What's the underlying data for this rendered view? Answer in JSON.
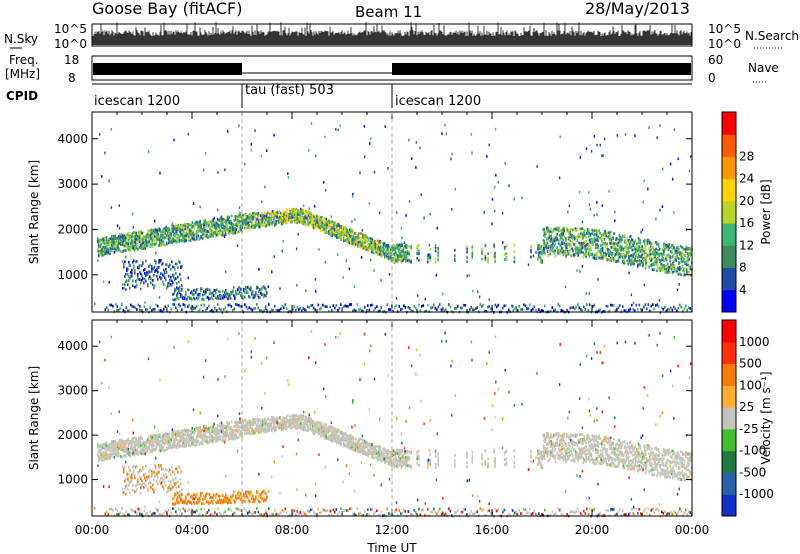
{
  "header": {
    "station": "Goose Bay (fitACF)",
    "beam": "Beam 11",
    "date": "28/May/2013"
  },
  "panels": {
    "nsky": {
      "label": "N.Sky",
      "ticks": [
        "10^5",
        "10^0"
      ],
      "right_label": "N.Search",
      "right_ticks": [
        "10^5",
        "10^0"
      ]
    },
    "freq": {
      "label_line1": "Freq.",
      "label_line2": "[MHz]",
      "ticks": [
        "18",
        "8"
      ],
      "right_label": "Nave",
      "right_ticks": [
        "60",
        "0"
      ]
    },
    "cpid": {
      "label": "CPID",
      "segments": [
        {
          "name": "icescan 1200",
          "start_hour": 0
        },
        {
          "name": "tau (fast) 503",
          "start_hour": 6
        },
        {
          "name": "icescan 1200",
          "start_hour": 12
        }
      ]
    }
  },
  "chart_data": [
    {
      "type": "heatmap",
      "name": "power",
      "ylabel": "Slant Range [km]",
      "ylim": [
        180,
        4590
      ],
      "yticks": [
        1000,
        2000,
        3000,
        4000
      ],
      "xlim": [
        0,
        24
      ],
      "xlabel": "",
      "colorbar": {
        "label": "Power [dB]",
        "ticks": [
          "4",
          "8",
          "12",
          "16",
          "20",
          "24",
          "28"
        ],
        "colors": [
          "#0000ff",
          "#1f4aa8",
          "#3d8a5c",
          "#38b870",
          "#b8d629",
          "#ffd200",
          "#ff9800",
          "#ff5a00",
          "#ff0000"
        ]
      },
      "bands": [
        {
          "t": [
            0.2,
            6.0
          ],
          "range": [
            1500,
            1950
          ],
          "level": [
            0.15,
            0.55
          ]
        },
        {
          "t": [
            6.0,
            12.0
          ],
          "range": [
            1500,
            2500
          ],
          "level": [
            0.2,
            0.7
          ]
        },
        {
          "t": [
            1.2,
            3.5
          ],
          "range": [
            600,
            1400
          ],
          "level": [
            0.05,
            0.35
          ]
        },
        {
          "t": [
            3.5,
            7.0
          ],
          "range": [
            450,
            700
          ],
          "level": [
            0.05,
            0.35
          ]
        },
        {
          "t": [
            18.0,
            24.0
          ],
          "range": [
            1100,
            2400
          ],
          "level": [
            0.1,
            0.55
          ]
        }
      ]
    },
    {
      "type": "heatmap",
      "name": "velocity",
      "ylabel": "Slant Range [km]",
      "ylim": [
        180,
        4590
      ],
      "yticks": [
        1000,
        2000,
        3000,
        4000
      ],
      "xlim": [
        0,
        24
      ],
      "xlabel": "Time UT",
      "xticks": [
        "00:00",
        "04:00",
        "08:00",
        "12:00",
        "16:00",
        "20:00",
        "00:00"
      ],
      "colorbar": {
        "label": "Velocity [m s⁻¹]",
        "ticks": [
          "1000",
          "500",
          "100",
          "25",
          "-25",
          "-100",
          "-500",
          "-1000"
        ],
        "colors": [
          "#1030c8",
          "#2660a8",
          "#1f7a40",
          "#3fc030",
          "#c4c4bc",
          "#ffae30",
          "#ff7a00",
          "#ff3000",
          "#ff0000"
        ]
      }
    }
  ]
}
